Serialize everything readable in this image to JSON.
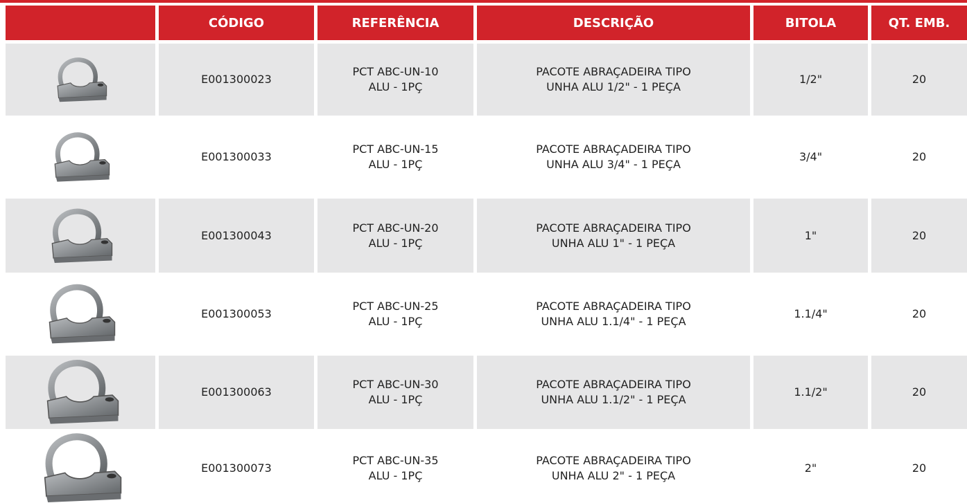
{
  "table": {
    "headers": [
      "CÓDIGO",
      "REFERÊNCIA",
      "DESCRIÇÃO",
      "BITOLA",
      "QT. EMB."
    ],
    "rows": [
      {
        "codigo": "E001300023",
        "referencia": [
          "PCT ABC-UN-10",
          "ALU - 1PÇ"
        ],
        "descricao": [
          "PACOTE ABRAÇADEIRA TIPO",
          "UNHA ALU 1/2\" - 1 PEÇA"
        ],
        "bitola": "1/2\"",
        "qt": "20"
      },
      {
        "codigo": "E001300033",
        "referencia": [
          "PCT ABC-UN-15",
          "ALU - 1PÇ"
        ],
        "descricao": [
          "PACOTE ABRAÇADEIRA TIPO",
          "UNHA ALU 3/4\" - 1 PEÇA"
        ],
        "bitola": "3/4\"",
        "qt": "20"
      },
      {
        "codigo": "E001300043",
        "referencia": [
          "PCT ABC-UN-20",
          "ALU - 1PÇ"
        ],
        "descricao": [
          "PACOTE ABRAÇADEIRA TIPO",
          "UNHA ALU 1\" - 1 PEÇA"
        ],
        "bitola": "1\"",
        "qt": "20"
      },
      {
        "codigo": "E001300053",
        "referencia": [
          "PCT ABC-UN-25",
          "ALU - 1PÇ"
        ],
        "descricao": [
          "PACOTE ABRAÇADEIRA TIPO",
          "UNHA ALU 1.1/4\" - 1 PEÇA"
        ],
        "bitola": "1.1/4\"",
        "qt": "20"
      },
      {
        "codigo": "E001300063",
        "referencia": [
          "PCT ABC-UN-30",
          "ALU - 1PÇ"
        ],
        "descricao": [
          "PACOTE ABRAÇADEIRA TIPO",
          "UNHA ALU 1.1/2\" - 1 PEÇA"
        ],
        "bitola": "1.1/2\"",
        "qt": "20"
      },
      {
        "codigo": "E001300073",
        "referencia": [
          "PCT ABC-UN-35",
          "ALU - 1PÇ"
        ],
        "descricao": [
          "PACOTE ABRAÇADEIRA TIPO",
          "UNHA ALU 2\" - 1 PEÇA"
        ],
        "bitola": "2\"",
        "qt": "20"
      }
    ]
  }
}
